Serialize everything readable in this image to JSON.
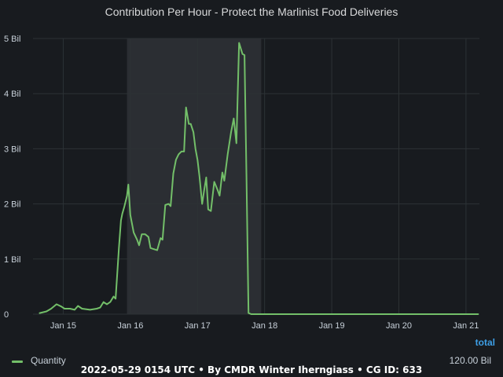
{
  "panel": {
    "title": "Contribution Per Hour - Protect the Marlinist Food Deliveries",
    "footer": "2022-05-29 0154 UTC • By CMDR Winter Iherngiass • CG ID: 633"
  },
  "legend": {
    "total_header": "total",
    "series_name": "Quantity",
    "total_value": "120.00 Bil"
  },
  "colors": {
    "series": "#73bf69",
    "grid": "#2c3235",
    "highlight": "#2b2e33",
    "background": "#181b1f"
  },
  "chart_data": {
    "type": "line",
    "title": "Contribution Per Hour - Protect the Marlinist Food Deliveries",
    "xlabel": "",
    "ylabel": "",
    "x_ticks": [
      {
        "label": "Jan 15",
        "x": 15
      },
      {
        "label": "Jan 16",
        "x": 16
      },
      {
        "label": "Jan 17",
        "x": 17
      },
      {
        "label": "Jan 18",
        "x": 18
      },
      {
        "label": "Jan 19",
        "x": 19
      },
      {
        "label": "Jan 20",
        "x": 20
      },
      {
        "label": "Jan 21",
        "x": 21
      }
    ],
    "y_ticks": [
      {
        "label": "0",
        "y": 0
      },
      {
        "label": "1 Bil",
        "y": 1
      },
      {
        "label": "2 Bil",
        "y": 2
      },
      {
        "label": "3 Bil",
        "y": 3
      },
      {
        "label": "4 Bil",
        "y": 4
      },
      {
        "label": "5 Bil",
        "y": 5
      }
    ],
    "xlim": [
      14.55,
      21.2
    ],
    "ylim": [
      0,
      5
    ],
    "y_unit": "Bil",
    "grid": true,
    "legend_position": "bottom",
    "highlight_range": [
      15.95,
      17.95
    ],
    "series": [
      {
        "name": "Quantity",
        "points": [
          [
            14.65,
            0.02
          ],
          [
            14.75,
            0.05
          ],
          [
            14.82,
            0.1
          ],
          [
            14.9,
            0.18
          ],
          [
            14.97,
            0.14
          ],
          [
            15.02,
            0.1
          ],
          [
            15.1,
            0.1
          ],
          [
            15.17,
            0.08
          ],
          [
            15.22,
            0.15
          ],
          [
            15.28,
            0.1
          ],
          [
            15.4,
            0.08
          ],
          [
            15.5,
            0.1
          ],
          [
            15.55,
            0.12
          ],
          [
            15.6,
            0.22
          ],
          [
            15.65,
            0.18
          ],
          [
            15.7,
            0.22
          ],
          [
            15.75,
            0.32
          ],
          [
            15.78,
            0.28
          ],
          [
            15.8,
            0.65
          ],
          [
            15.83,
            1.2
          ],
          [
            15.86,
            1.7
          ],
          [
            15.88,
            1.82
          ],
          [
            15.91,
            1.95
          ],
          [
            15.93,
            2.05
          ],
          [
            15.95,
            2.15
          ],
          [
            15.97,
            2.35
          ],
          [
            16.0,
            1.8
          ],
          [
            16.05,
            1.48
          ],
          [
            16.1,
            1.35
          ],
          [
            16.13,
            1.25
          ],
          [
            16.17,
            1.45
          ],
          [
            16.22,
            1.45
          ],
          [
            16.27,
            1.4
          ],
          [
            16.3,
            1.2
          ],
          [
            16.35,
            1.18
          ],
          [
            16.4,
            1.16
          ],
          [
            16.45,
            1.38
          ],
          [
            16.48,
            1.35
          ],
          [
            16.52,
            1.98
          ],
          [
            16.57,
            2.0
          ],
          [
            16.6,
            1.96
          ],
          [
            16.64,
            2.55
          ],
          [
            16.68,
            2.8
          ],
          [
            16.72,
            2.9
          ],
          [
            16.76,
            2.95
          ],
          [
            16.8,
            2.95
          ],
          [
            16.83,
            3.75
          ],
          [
            16.87,
            3.45
          ],
          [
            16.9,
            3.45
          ],
          [
            16.94,
            3.3
          ],
          [
            16.97,
            3.0
          ],
          [
            17.0,
            2.8
          ],
          [
            17.03,
            2.5
          ],
          [
            17.07,
            2.0
          ],
          [
            17.1,
            2.25
          ],
          [
            17.13,
            2.48
          ],
          [
            17.16,
            1.9
          ],
          [
            17.2,
            1.87
          ],
          [
            17.25,
            2.4
          ],
          [
            17.3,
            2.25
          ],
          [
            17.33,
            2.15
          ],
          [
            17.37,
            2.57
          ],
          [
            17.4,
            2.42
          ],
          [
            17.45,
            2.9
          ],
          [
            17.5,
            3.3
          ],
          [
            17.54,
            3.55
          ],
          [
            17.58,
            3.1
          ],
          [
            17.62,
            4.92
          ],
          [
            17.67,
            4.72
          ],
          [
            17.7,
            4.7
          ],
          [
            17.73,
            2.5
          ],
          [
            17.76,
            0.02
          ],
          [
            17.8,
            0.0
          ],
          [
            18.5,
            0.0
          ],
          [
            19.5,
            0.0
          ],
          [
            20.5,
            0.0
          ],
          [
            21.18,
            0.0
          ]
        ]
      }
    ]
  }
}
